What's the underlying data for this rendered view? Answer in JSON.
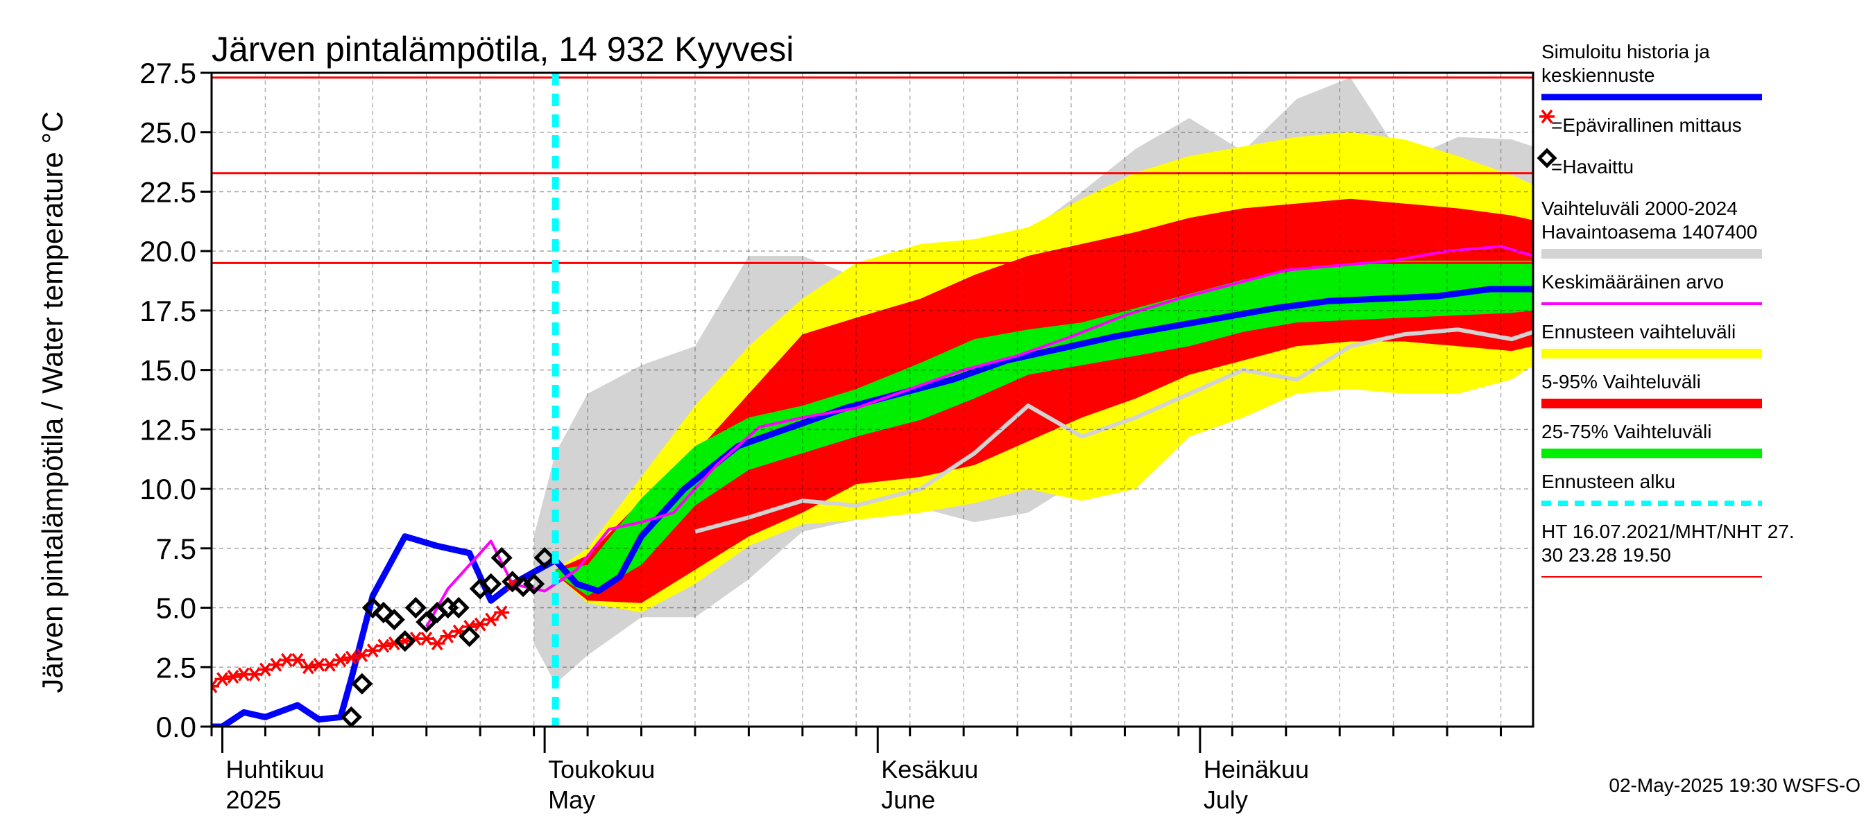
{
  "chart_data": {
    "type": "line",
    "title": "Järven pintalämpötila, 14 932 Kyyvesi",
    "ylabel": "Järven pintalämpötila / Water temperature °C",
    "xlabel": "",
    "ylim": [
      0,
      27.5
    ],
    "x_range": [
      "2025-03-31",
      "2025-08-01"
    ],
    "y_ticks": [
      "0.0",
      "2.5",
      "5.0",
      "7.5",
      "10.0",
      "12.5",
      "15.0",
      "17.5",
      "20.0",
      "22.5",
      "25.0",
      "27.5"
    ],
    "months": [
      {
        "fi": "Huhtikuu",
        "en": "2025",
        "date": "2025-04-01"
      },
      {
        "fi": "Toukokuu",
        "en": "May",
        "date": "2025-05-01"
      },
      {
        "fi": "Kesäkuu",
        "en": "June",
        "date": "2025-06-01"
      },
      {
        "fi": "Heinäkuu",
        "en": "July",
        "date": "2025-07-01"
      }
    ],
    "grid": true,
    "forecast_start": "2025-05-02",
    "reference_lines": [
      {
        "label": "HT 16.07.2021",
        "value": 27.3
      },
      {
        "label": "MHT",
        "value": 23.28
      },
      {
        "label": "NHT",
        "value": 19.5
      }
    ],
    "series": [
      {
        "name": "Vaihteluväli 2000-2024 Havaintoasema 1407400",
        "kind": "band",
        "color": "#d3d3d3",
        "x": [
          "2025-04-30",
          "2025-05-02",
          "2025-05-05",
          "2025-05-10",
          "2025-05-15",
          "2025-05-20",
          "2025-05-25",
          "2025-05-30",
          "2025-06-05",
          "2025-06-10",
          "2025-06-15",
          "2025-06-20",
          "2025-06-25",
          "2025-06-30",
          "2025-07-05",
          "2025-07-10",
          "2025-07-15",
          "2025-07-20",
          "2025-07-25",
          "2025-07-30",
          "2025-08-01"
        ],
        "low": [
          3.5,
          1.8,
          3.0,
          4.6,
          4.6,
          6.2,
          8.2,
          8.7,
          9.2,
          8.6,
          9.0,
          10.4,
          11.0,
          12.3,
          14.3,
          14.8,
          15.4,
          16.4,
          16.3,
          16.6,
          15.0
        ],
        "high": [
          8.0,
          11.5,
          14.0,
          15.2,
          16.0,
          19.8,
          19.8,
          18.9,
          19.6,
          20.2,
          20.8,
          22.5,
          24.3,
          25.6,
          24.2,
          26.4,
          27.3,
          23.8,
          24.8,
          24.7,
          24.4
        ]
      },
      {
        "name": "Ennusteen vaihteluväli",
        "kind": "band",
        "color": "#ffff00",
        "x": [
          "2025-05-02",
          "2025-05-05",
          "2025-05-10",
          "2025-05-15",
          "2025-05-20",
          "2025-05-25",
          "2025-05-30",
          "2025-06-05",
          "2025-06-10",
          "2025-06-15",
          "2025-06-20",
          "2025-06-25",
          "2025-06-30",
          "2025-07-05",
          "2025-07-10",
          "2025-07-15",
          "2025-07-20",
          "2025-07-25",
          "2025-07-30",
          "2025-08-01"
        ],
        "low": [
          6.4,
          5.2,
          4.8,
          6.0,
          7.6,
          8.5,
          8.7,
          9.0,
          9.4,
          10.0,
          9.5,
          10.0,
          12.2,
          13.0,
          14.0,
          14.2,
          14.0,
          14.0,
          14.6,
          15.2
        ],
        "high": [
          6.6,
          7.5,
          10.5,
          13.5,
          16.0,
          18.0,
          19.5,
          20.3,
          20.5,
          21.0,
          22.2,
          23.3,
          24.0,
          24.4,
          24.8,
          25.0,
          24.7,
          24.0,
          23.2,
          22.8
        ]
      },
      {
        "name": "5-95% Vaihteluväli",
        "kind": "band",
        "color": "#ff0000",
        "x": [
          "2025-05-02",
          "2025-05-05",
          "2025-05-10",
          "2025-05-15",
          "2025-05-20",
          "2025-05-25",
          "2025-05-30",
          "2025-06-05",
          "2025-06-10",
          "2025-06-15",
          "2025-06-20",
          "2025-06-25",
          "2025-06-30",
          "2025-07-05",
          "2025-07-10",
          "2025-07-15",
          "2025-07-20",
          "2025-07-25",
          "2025-07-30",
          "2025-08-01"
        ],
        "low": [
          6.4,
          5.3,
          5.2,
          6.6,
          8.0,
          9.0,
          10.2,
          10.5,
          11.0,
          12.0,
          13.0,
          13.8,
          14.8,
          15.4,
          16.0,
          16.2,
          16.2,
          16.0,
          15.8,
          16.0
        ],
        "high": [
          6.6,
          7.2,
          9.5,
          11.5,
          14.0,
          16.5,
          17.2,
          18.0,
          19.0,
          19.8,
          20.3,
          20.8,
          21.4,
          21.8,
          22.0,
          22.2,
          22.0,
          21.8,
          21.5,
          21.3
        ]
      },
      {
        "name": "25-75% Vaihteluväli",
        "kind": "band",
        "color": "#00ee00",
        "x": [
          "2025-05-02",
          "2025-05-05",
          "2025-05-10",
          "2025-05-15",
          "2025-05-20",
          "2025-05-25",
          "2025-05-30",
          "2025-06-05",
          "2025-06-10",
          "2025-06-15",
          "2025-06-20",
          "2025-06-25",
          "2025-06-30",
          "2025-07-05",
          "2025-07-10",
          "2025-07-15",
          "2025-07-20",
          "2025-07-25",
          "2025-07-30",
          "2025-08-01"
        ],
        "low": [
          6.4,
          5.5,
          6.8,
          9.3,
          10.8,
          11.5,
          12.2,
          12.9,
          13.8,
          14.8,
          15.2,
          15.6,
          16.0,
          16.6,
          17.0,
          17.1,
          17.2,
          17.3,
          17.4,
          17.5
        ],
        "high": [
          6.6,
          6.8,
          9.6,
          11.8,
          13.0,
          13.5,
          14.2,
          15.3,
          16.3,
          16.7,
          17.0,
          17.6,
          18.2,
          18.8,
          19.2,
          19.5,
          19.6,
          19.6,
          19.6,
          19.6
        ]
      },
      {
        "name": "Simuloitu historia ja keskiennuste",
        "kind": "line",
        "color": "#0000ff",
        "x": [
          "2025-03-31",
          "2025-04-01",
          "2025-04-03",
          "2025-04-05",
          "2025-04-08",
          "2025-04-10",
          "2025-04-12",
          "2025-04-13",
          "2025-04-15",
          "2025-04-18",
          "2025-04-21",
          "2025-04-24",
          "2025-04-26",
          "2025-04-28",
          "2025-04-30",
          "2025-05-02",
          "2025-05-04",
          "2025-05-06",
          "2025-05-08",
          "2025-05-10",
          "2025-05-14",
          "2025-05-19",
          "2025-05-24",
          "2025-05-29",
          "2025-06-03",
          "2025-06-08",
          "2025-06-13",
          "2025-06-18",
          "2025-06-23",
          "2025-06-28",
          "2025-07-03",
          "2025-07-08",
          "2025-07-13",
          "2025-07-18",
          "2025-07-23",
          "2025-07-28",
          "2025-08-01"
        ],
        "y": [
          0.0,
          0.0,
          0.6,
          0.4,
          0.9,
          0.3,
          0.4,
          2.0,
          5.5,
          8.0,
          7.6,
          7.3,
          5.3,
          6.0,
          6.5,
          7.0,
          6.0,
          5.7,
          6.3,
          8.0,
          10.0,
          11.8,
          12.6,
          13.4,
          14.0,
          14.6,
          15.4,
          15.9,
          16.4,
          16.8,
          17.2,
          17.6,
          17.9,
          18.0,
          18.1,
          18.4,
          18.4
        ]
      },
      {
        "name": "Keskimääräinen arvo",
        "kind": "line",
        "color": "#ff00ff",
        "x": [
          "2025-04-20",
          "2025-04-22",
          "2025-04-26",
          "2025-04-28",
          "2025-05-01",
          "2025-05-04",
          "2025-05-07",
          "2025-05-10",
          "2025-05-13",
          "2025-05-17",
          "2025-05-21",
          "2025-05-25",
          "2025-05-30",
          "2025-06-04",
          "2025-06-09",
          "2025-06-14",
          "2025-06-19",
          "2025-06-24",
          "2025-06-29",
          "2025-07-04",
          "2025-07-09",
          "2025-07-14",
          "2025-07-19",
          "2025-07-24",
          "2025-07-29",
          "2025-08-01"
        ],
        "y": [
          4.2,
          5.8,
          7.8,
          6.0,
          5.7,
          6.6,
          8.3,
          8.6,
          9.0,
          11.0,
          12.6,
          13.0,
          13.4,
          14.2,
          15.0,
          15.6,
          16.4,
          17.3,
          18.0,
          18.6,
          19.2,
          19.4,
          19.6,
          20.0,
          20.2,
          19.8
        ]
      },
      {
        "name": "Vaihteluväli 2000-2024 Havaintoasema 1407400 (historical mean trace)",
        "kind": "line",
        "color": "#d3d3d3",
        "x": [
          "2025-05-15",
          "2025-05-20",
          "2025-05-25",
          "2025-05-30",
          "2025-06-05",
          "2025-06-10",
          "2025-06-15",
          "2025-06-20",
          "2025-06-25",
          "2025-06-30",
          "2025-07-05",
          "2025-07-10",
          "2025-07-15",
          "2025-07-20",
          "2025-07-25",
          "2025-07-30",
          "2025-08-01"
        ],
        "y": [
          8.2,
          8.8,
          9.5,
          9.3,
          10.0,
          11.5,
          13.5,
          12.2,
          13.0,
          14.0,
          15.0,
          14.6,
          16.0,
          16.5,
          16.7,
          16.3,
          16.6
        ]
      },
      {
        "name": "Epävirallinen mittaus",
        "kind": "scatter",
        "marker": "asterisk",
        "color": "#ff0000",
        "x": [
          "2025-03-31",
          "2025-04-01",
          "2025-04-02",
          "2025-04-03",
          "2025-04-04",
          "2025-04-05",
          "2025-04-06",
          "2025-04-07",
          "2025-04-08",
          "2025-04-09",
          "2025-04-10",
          "2025-04-11",
          "2025-04-12",
          "2025-04-13",
          "2025-04-14",
          "2025-04-15",
          "2025-04-16",
          "2025-04-17",
          "2025-04-18",
          "2025-04-19",
          "2025-04-20",
          "2025-04-21",
          "2025-04-22",
          "2025-04-23",
          "2025-04-24",
          "2025-04-25",
          "2025-04-26",
          "2025-04-27",
          "2025-04-28"
        ],
        "y": [
          1.7,
          2.0,
          2.1,
          2.2,
          2.2,
          2.4,
          2.6,
          2.8,
          2.8,
          2.5,
          2.6,
          2.6,
          2.8,
          2.9,
          3.0,
          3.2,
          3.4,
          3.5,
          3.6,
          3.7,
          3.7,
          3.5,
          3.8,
          4.0,
          4.2,
          4.3,
          4.5,
          4.8,
          6.0
        ]
      },
      {
        "name": "Havaittu",
        "kind": "scatter",
        "marker": "diamond",
        "color": "#000000",
        "x": [
          "2025-04-13",
          "2025-04-14",
          "2025-04-15",
          "2025-04-16",
          "2025-04-17",
          "2025-04-18",
          "2025-04-19",
          "2025-04-20",
          "2025-04-21",
          "2025-04-22",
          "2025-04-23",
          "2025-04-24",
          "2025-04-25",
          "2025-04-26",
          "2025-04-27",
          "2025-04-28",
          "2025-04-29",
          "2025-04-30",
          "2025-05-01"
        ],
        "y": [
          0.4,
          1.8,
          5.0,
          4.8,
          4.5,
          3.6,
          5.0,
          4.4,
          4.8,
          5.0,
          5.0,
          3.8,
          5.8,
          6.0,
          7.1,
          6.1,
          5.9,
          6.0,
          7.1
        ]
      },
      {
        "name": "Ennusteen alku",
        "kind": "vline",
        "color": "#00ffff"
      },
      {
        "name": "HT 16.07.2021/MHT/NHT 27.30 23.28 19.50",
        "kind": "hlines",
        "color": "#ff0000"
      }
    ]
  },
  "legend": {
    "items": [
      {
        "label_lines": [
          "Simuloitu historia ja",
          "keskiennuste"
        ],
        "color": "#0000ff",
        "swatch": "line"
      },
      {
        "label_lines": [
          "=Epävirallinen mittaus"
        ],
        "color": "#ff0000",
        "swatch": "asterisk"
      },
      {
        "label_lines": [
          "=Havaittu"
        ],
        "color": "#000000",
        "swatch": "diamond"
      },
      {
        "label_lines": [
          "Vaihteluväli 2000-2024",
          " Havaintoasema 1407400"
        ],
        "color": "#d3d3d3",
        "swatch": "thick"
      },
      {
        "label_lines": [
          "Keskimääräinen arvo"
        ],
        "color": "#ff00ff",
        "swatch": "line"
      },
      {
        "label_lines": [
          "Ennusteen vaihteluväli"
        ],
        "color": "#ffff00",
        "swatch": "thick"
      },
      {
        "label_lines": [
          "5-95% Vaihteluväli"
        ],
        "color": "#ff0000",
        "swatch": "thick"
      },
      {
        "label_lines": [
          "25-75% Vaihteluväli"
        ],
        "color": "#00ee00",
        "swatch": "thick"
      },
      {
        "label_lines": [
          "Ennusteen alku"
        ],
        "color": "#00ffff",
        "swatch": "dashed"
      },
      {
        "label_lines": [
          "HT 16.07.2021/MHT/NHT 27.",
          "30 23.28 19.50"
        ],
        "color": "#ff0000",
        "swatch": "thin"
      }
    ]
  },
  "footer": {
    "timestamp": "02-May-2025 19:30 WSFS-O"
  }
}
